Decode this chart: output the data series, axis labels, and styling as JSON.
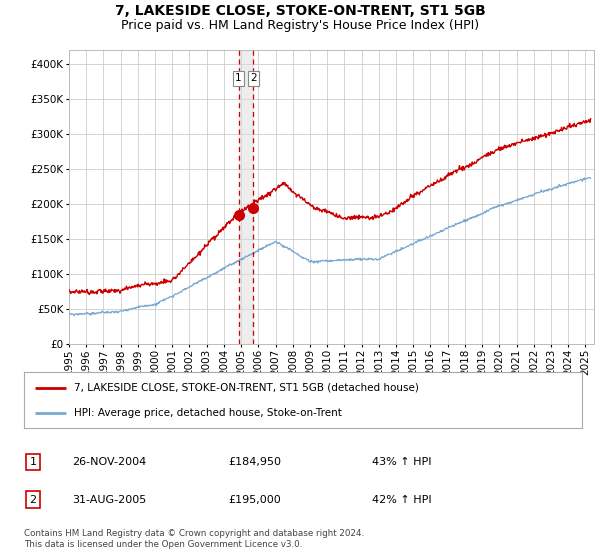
{
  "title": "7, LAKESIDE CLOSE, STOKE-ON-TRENT, ST1 5GB",
  "subtitle": "Price paid vs. HM Land Registry's House Price Index (HPI)",
  "ylabel_ticks": [
    "£0",
    "£50K",
    "£100K",
    "£150K",
    "£200K",
    "£250K",
    "£300K",
    "£350K",
    "£400K"
  ],
  "ytick_values": [
    0,
    50000,
    100000,
    150000,
    200000,
    250000,
    300000,
    350000,
    400000
  ],
  "ylim": [
    0,
    420000
  ],
  "xlim_start": 1995.0,
  "xlim_end": 2025.5,
  "red_line_color": "#cc0000",
  "blue_line_color": "#7aa8d2",
  "vline_color": "#cc0000",
  "vline_x1": 2004.9,
  "vline_x2": 2005.67,
  "transaction1_x": 2004.9,
  "transaction1_y": 184950,
  "transaction2_x": 2005.67,
  "transaction2_y": 195000,
  "legend_label_red": "7, LAKESIDE CLOSE, STOKE-ON-TRENT, ST1 5GB (detached house)",
  "legend_label_blue": "HPI: Average price, detached house, Stoke-on-Trent",
  "table_row1_num": "1",
  "table_row1_date": "26-NOV-2004",
  "table_row1_price": "£184,950",
  "table_row1_hpi": "43% ↑ HPI",
  "table_row2_num": "2",
  "table_row2_date": "31-AUG-2005",
  "table_row2_price": "£195,000",
  "table_row2_hpi": "42% ↑ HPI",
  "footer": "Contains HM Land Registry data © Crown copyright and database right 2024.\nThis data is licensed under the Open Government Licence v3.0.",
  "background_color": "#ffffff",
  "grid_color": "#cccccc",
  "title_fontsize": 10,
  "subtitle_fontsize": 9,
  "tick_fontsize": 7.5
}
